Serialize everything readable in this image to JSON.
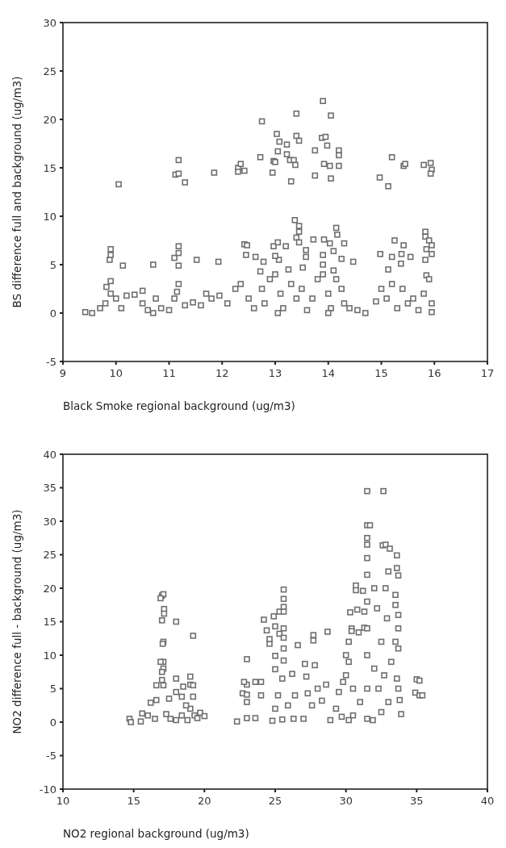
{
  "chart_data": [
    {
      "type": "scatter",
      "xlabel": "Black Smoke regional background (ug/m3)",
      "ylabel": "BS difference full and background (ug/m3)",
      "xlim": [
        9,
        17
      ],
      "xticks": [
        9,
        10,
        11,
        12,
        13,
        14,
        15,
        16,
        17
      ],
      "ylim": [
        -5,
        30
      ],
      "yticks": [
        -5,
        0,
        5,
        10,
        15,
        20,
        25,
        30
      ],
      "marker": "square",
      "grid": false,
      "series": [
        {
          "color": "#6d6e71",
          "x": [
            10.05,
            11.12,
            11.18,
            11.18,
            11.3,
            11.85,
            12.3,
            12.35,
            12.3,
            12.42,
            12.72,
            12.75,
            12.95,
            12.97,
            13.0,
            13.03,
            13.05,
            13.08,
            13.22,
            13.22,
            13.28,
            13.3,
            13.35,
            13.38,
            13.4,
            13.4,
            13.45,
            13.75,
            13.75,
            13.88,
            13.9,
            13.92,
            13.95,
            13.98,
            14.03,
            14.05,
            14.05,
            14.2,
            14.2,
            14.2,
            14.97,
            15.13,
            15.2,
            15.42,
            15.45,
            15.8,
            15.93,
            15.95,
            15.93,
            9.88,
            9.9,
            9.9,
            9.9,
            9.82,
            10.13,
            10.7,
            11.1,
            11.18,
            11.18,
            11.18,
            11.18,
            11.52,
            11.93,
            12.42,
            12.47,
            12.45,
            12.63,
            12.78,
            12.72,
            12.97,
            13.05,
            13.07,
            13.2,
            13.37,
            13.45,
            13.45,
            13.4,
            13.45,
            13.58,
            13.58,
            13.52,
            13.72,
            13.92,
            14.03,
            14.1,
            14.15,
            14.17,
            14.3,
            14.25,
            14.47,
            14.98,
            15.13,
            15.2,
            15.25,
            15.37,
            15.38,
            15.42,
            15.55,
            15.83,
            15.83,
            15.9,
            15.85,
            15.95,
            15.95,
            15.83,
            15.85,
            13.0,
            13.9,
            13.9,
            14.1,
            9.42,
            9.55,
            9.7,
            9.8,
            9.9,
            10.0,
            10.1,
            10.2,
            10.35,
            10.5,
            10.5,
            10.6,
            10.7,
            10.75,
            10.85,
            11.0,
            11.1,
            11.15,
            11.3,
            11.45,
            11.6,
            11.7,
            11.8,
            11.95,
            12.1,
            12.25,
            12.35,
            12.5,
            12.6,
            12.75,
            12.8,
            12.9,
            13.0,
            13.1,
            13.15,
            13.25,
            13.3,
            13.4,
            13.5,
            13.6,
            13.7,
            13.8,
            13.9,
            14.0,
            14.05,
            14.15,
            14.25,
            14.3,
            14.4,
            14.55,
            14.7,
            14.9,
            15.0,
            15.1,
            15.2,
            15.3,
            15.4,
            15.5,
            15.6,
            15.7,
            15.8,
            15.9,
            15.95,
            15.95,
            13.05,
            14.0
          ],
          "values": [
            13.3,
            14.3,
            14.4,
            15.8,
            13.5,
            14.5,
            15,
            15.4,
            14.6,
            14.7,
            16.1,
            19.8,
            14.5,
            15.7,
            15.6,
            18.5,
            16.7,
            17.7,
            17.4,
            16.4,
            15.8,
            13.6,
            15.8,
            15.3,
            18.3,
            20.6,
            17.8,
            16.8,
            14.2,
            18.1,
            21.9,
            15.4,
            18.2,
            17.3,
            15.2,
            13.9,
            20.4,
            16.8,
            16.3,
            15.2,
            14,
            13.1,
            16.1,
            15.2,
            15.4,
            15.3,
            15.5,
            14.8,
            14.4,
            5.5,
            6.6,
            6.0,
            3.3,
            2.7,
            4.9,
            5.0,
            5.7,
            6.9,
            6.2,
            4.9,
            3.0,
            5.5,
            5.3,
            7.1,
            7.0,
            6.0,
            5.8,
            5.3,
            4.3,
            6.9,
            7.3,
            5.5,
            6.9,
            9.6,
            9.0,
            8.4,
            7.8,
            7.3,
            6.5,
            5.8,
            4.7,
            7.6,
            7.6,
            7.2,
            6.4,
            8.8,
            8.1,
            7.2,
            5.6,
            5.3,
            6.1,
            4.5,
            5.8,
            7.5,
            5.1,
            6.1,
            7.0,
            5.8,
            8.4,
            7.9,
            7.5,
            6.6,
            7.0,
            6.1,
            5.5,
            3.9,
            5.9,
            6.0,
            5.0,
            4.4,
            0.1,
            0,
            0.5,
            1,
            2,
            1.5,
            0.5,
            1.8,
            1.9,
            2.3,
            1.0,
            0.3,
            0,
            1.5,
            0.5,
            0.3,
            1.5,
            2.2,
            0.8,
            1.1,
            0.8,
            2.0,
            1.5,
            1.8,
            1.0,
            2.5,
            3.0,
            1.5,
            0.5,
            2.5,
            1.0,
            3.5,
            4.0,
            2.0,
            0.5,
            4.5,
            3.0,
            1.5,
            2.5,
            0.3,
            1.5,
            3.5,
            4.0,
            2.0,
            0.5,
            3.5,
            2.5,
            1.0,
            0.5,
            0.3,
            0,
            1.2,
            2.5,
            1.5,
            3.0,
            0.5,
            2.5,
            1.0,
            1.5,
            0.3,
            2.0,
            3.5,
            1.0,
            0.1,
            0,
            0
          ]
        }
      ]
    },
    {
      "type": "scatter",
      "xlabel": "NO2 regional background (ug/m3)",
      "ylabel": "NO2 difference full - background (ug/m3)",
      "xlim": [
        10,
        40
      ],
      "xticks": [
        10,
        15,
        20,
        25,
        30,
        35,
        40
      ],
      "ylim": [
        -10,
        40
      ],
      "yticks": [
        -10,
        -5,
        0,
        5,
        10,
        15,
        20,
        25,
        30,
        35,
        40
      ],
      "marker": "square",
      "grid": false,
      "series": [
        {
          "color": "#6d6e71",
          "x": [
            17.0,
            17.1,
            16.9,
            17.15,
            17.15,
            17.0,
            18.0,
            19.2,
            17.1,
            17.05,
            17.1,
            16.9,
            17.1,
            17.0,
            17.0,
            16.6,
            17.1,
            18.0,
            18.0,
            19.0,
            19.0,
            19.2,
            18.5,
            19.2,
            16.2,
            15.6,
            14.7,
            14.8,
            15.5,
            16.0,
            16.5,
            17.3,
            17.6,
            18.0,
            18.4,
            18.8,
            19.0,
            19.3,
            19.5,
            19.7,
            20.0,
            17.5,
            18.4,
            18.7,
            16.6,
            22.3,
            23.0,
            23.0,
            23.0,
            23.0,
            22.8,
            22.7,
            23.0,
            23.6,
            24.0,
            24.0,
            23.6,
            24.2,
            24.4,
            24.6,
            24.6,
            24.9,
            25.0,
            25.3,
            25.3,
            25.6,
            25.6,
            25.6,
            25.6,
            25.6,
            25.6,
            25.6,
            25.6,
            25.0,
            25.0,
            25.5,
            25.2,
            25.0,
            24.8,
            25.5,
            25.9,
            26.4,
            26.2,
            26.6,
            27.1,
            27.2,
            27.8,
            27.3,
            27.7,
            27.7,
            28.0,
            28.3,
            28.7,
            28.6,
            27.6,
            27.0,
            26.3,
            28.9,
            29.3,
            29.5,
            29.8,
            30.0,
            30.3,
            30.7,
            30.7,
            31.2,
            30.4,
            30.4,
            30.8,
            31.3,
            31.3,
            30.9,
            31.5,
            31.7,
            31.5,
            31.5,
            31.5,
            31.5,
            31.5,
            31.5,
            31.5,
            31.5,
            31.5,
            31.5,
            32.65,
            32.6,
            32.8,
            33.1,
            33.6,
            33.6,
            33.0,
            33.7,
            32.8,
            33.5,
            33.5,
            33.7,
            33.7,
            33.5,
            33.7,
            33.2,
            33.6,
            33.7,
            33.8,
            33.9,
            32.0,
            32.5,
            32.9,
            32.0,
            32.2,
            30.2,
            30.2,
            30.0,
            30.5,
            31.0,
            30.5,
            31.9,
            32.5,
            33.0,
            32.3,
            32.7,
            30.2,
            29.7,
            35.0,
            35.2,
            34.9,
            35.2,
            35.4
          ],
          "values": [
            18.9,
            19.1,
            18.5,
            16.9,
            16.2,
            15.2,
            15.0,
            12.9,
            12,
            11.7,
            9.0,
            9.0,
            8.0,
            7.5,
            6.3,
            5.5,
            5.5,
            6.5,
            4.5,
            6.8,
            5.6,
            5.5,
            5.3,
            3.8,
            2.9,
            1.3,
            0.5,
            0,
            0.1,
            1.0,
            0.5,
            1.2,
            0.5,
            0.3,
            1.0,
            0.3,
            2.0,
            1.0,
            0.6,
            1.4,
            0.9,
            3.5,
            3.8,
            2.5,
            3.3,
            0.1,
            0.6,
            3.0,
            5.6,
            9.4,
            6.0,
            4.3,
            4.1,
            6.0,
            6.0,
            4.0,
            0.6,
            15.3,
            13.7,
            11.7,
            12.4,
            15.8,
            14.3,
            13.2,
            16.5,
            19.8,
            18.4,
            17.2,
            16.5,
            14.0,
            12.6,
            11.0,
            9.2,
            9.9,
            7.9,
            6.5,
            4.0,
            2.0,
            0.2,
            0.4,
            2.5,
            4.0,
            7.2,
            11.5,
            8.7,
            6.8,
            8.5,
            4.3,
            12.2,
            13.0,
            5.0,
            3.2,
            13.5,
            5.6,
            2.5,
            0.5,
            0.5,
            0.3,
            2.0,
            4.5,
            6.0,
            10.0,
            16.4,
            20.4,
            19.7,
            19.6,
            14.0,
            13.6,
            16.8,
            16.5,
            14.1,
            13.4,
            29.4,
            29.4,
            27.5,
            26.5,
            24.5,
            22.0,
            18.0,
            14.0,
            10.0,
            5.0,
            0.5,
            34.5,
            34.5,
            26.4,
            26.5,
            25.9,
            24.9,
            23.0,
            22.5,
            21.9,
            20.0,
            19.0,
            17.5,
            16.0,
            14.0,
            12.0,
            11.0,
            9.0,
            6.5,
            5.0,
            3.3,
            1.2,
            8.0,
            12.0,
            15.5,
            20.0,
            17.0,
            12.0,
            9.0,
            7.0,
            5.0,
            3.0,
            1.0,
            0.3,
            1.5,
            3.0,
            5.0,
            7.0,
            0.3,
            0.8,
            6.4,
            6.2,
            4.4,
            4.0,
            4.0
          ]
        }
      ]
    }
  ]
}
